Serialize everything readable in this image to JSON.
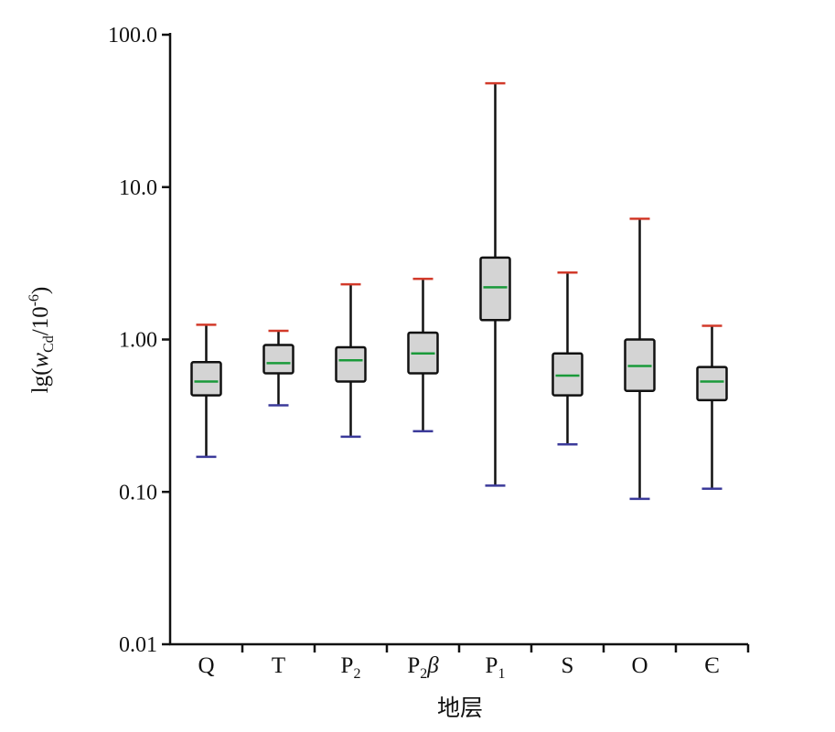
{
  "chart_data": {
    "type": "box",
    "y_scale": "log",
    "ylim": [
      0.01,
      100
    ],
    "yticks": [
      {
        "value": 0.01,
        "label": "0.01"
      },
      {
        "value": 0.1,
        "label": "0.10"
      },
      {
        "value": 1,
        "label": "1.00"
      },
      {
        "value": 10,
        "label": "10.0"
      },
      {
        "value": 100,
        "label": "100.0"
      }
    ],
    "xlabel": "地层",
    "ylabel": {
      "prefix": "lg(",
      "var": "w",
      "sub": "Cd",
      "middle": "/10",
      "sup": "-6",
      "suffix": ")"
    },
    "categories": [
      {
        "main": "Q",
        "sub": ""
      },
      {
        "main": "T",
        "sub": ""
      },
      {
        "main": "P",
        "sub": "2"
      },
      {
        "main": "P",
        "sub": "2",
        "greek": "β"
      },
      {
        "main": "P",
        "sub": "1"
      },
      {
        "main": "S",
        "sub": ""
      },
      {
        "main": "O",
        "sub": ""
      },
      {
        "main": "Є",
        "sub": ""
      }
    ],
    "boxes": [
      {
        "min": 0.17,
        "q1": 0.43,
        "median": 0.53,
        "q3": 0.71,
        "max": 1.25
      },
      {
        "min": 0.37,
        "q1": 0.6,
        "median": 0.7,
        "q3": 0.92,
        "max": 1.14
      },
      {
        "min": 0.23,
        "q1": 0.53,
        "median": 0.73,
        "q3": 0.89,
        "max": 2.3
      },
      {
        "min": 0.25,
        "q1": 0.6,
        "median": 0.81,
        "q3": 1.11,
        "max": 2.5
      },
      {
        "min": 0.11,
        "q1": 1.34,
        "median": 2.2,
        "q3": 3.45,
        "max": 48
      },
      {
        "min": 0.205,
        "q1": 0.43,
        "median": 0.58,
        "q3": 0.81,
        "max": 2.75
      },
      {
        "min": 0.09,
        "q1": 0.46,
        "median": 0.67,
        "q3": 1.0,
        "max": 6.2
      },
      {
        "min": 0.105,
        "q1": 0.4,
        "median": 0.53,
        "q3": 0.66,
        "max": 1.23
      }
    ],
    "colors": {
      "box_fill": "#d4d4d4",
      "box_stroke": "#111111",
      "median": "#1a9a3a",
      "max_cap": "#d23a2a",
      "min_cap": "#3b3a9a",
      "axis": "#111111"
    },
    "grid": false,
    "legend": "none"
  }
}
